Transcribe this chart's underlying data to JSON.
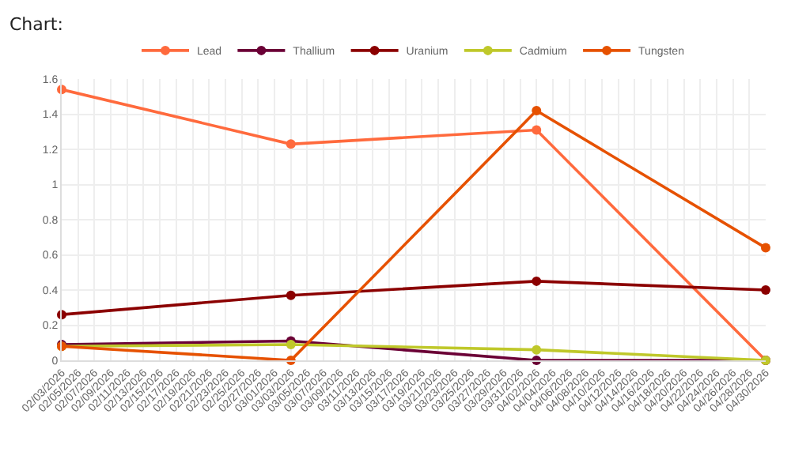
{
  "chart_data": {
    "type": "line",
    "title": "Chart:",
    "x": [
      "2026-02-03",
      "2026-03-03",
      "2026-04-02",
      "2026-04-30"
    ],
    "series": [
      {
        "name": "Lead",
        "color": "#ff6a3d",
        "values": [
          1.54,
          1.23,
          1.31,
          0
        ]
      },
      {
        "name": "Thallium",
        "color": "#6b0036",
        "values": [
          0.09,
          0.11,
          0,
          0
        ]
      },
      {
        "name": "Uranium",
        "color": "#8b0000",
        "values": [
          0.26,
          0.37,
          0.45,
          0.4
        ]
      },
      {
        "name": "Cadmium",
        "color": "#bfc82a",
        "values": [
          0.08,
          0.09,
          0.06,
          0
        ]
      },
      {
        "name": "Tungsten",
        "color": "#e65100",
        "values": [
          0.08,
          0,
          1.42,
          0.64
        ]
      }
    ],
    "xlim": [
      "2026-02-03",
      "2026-04-30"
    ],
    "xticks": [
      {
        "value": "2026-02-03",
        "label": "02/03/2026"
      },
      {
        "value": "2026-02-05",
        "label": "02/05/2026"
      },
      {
        "value": "2026-02-07",
        "label": "02/07/2026"
      },
      {
        "value": "2026-02-09",
        "label": "02/09/2026"
      },
      {
        "value": "2026-02-11",
        "label": "02/11/2026"
      },
      {
        "value": "2026-02-13",
        "label": "02/13/2026"
      },
      {
        "value": "2026-02-15",
        "label": "02/15/2026"
      },
      {
        "value": "2026-02-17",
        "label": "02/17/2026"
      },
      {
        "value": "2026-02-19",
        "label": "02/19/2026"
      },
      {
        "value": "2026-02-21",
        "label": "02/21/2026"
      },
      {
        "value": "2026-02-23",
        "label": "02/23/2026"
      },
      {
        "value": "2026-02-25",
        "label": "02/25/2026"
      },
      {
        "value": "2026-02-27",
        "label": "02/27/2026"
      },
      {
        "value": "2026-03-01",
        "label": "03/01/2026"
      },
      {
        "value": "2026-03-03",
        "label": "03/03/2026"
      },
      {
        "value": "2026-03-05",
        "label": "03/05/2026"
      },
      {
        "value": "2026-03-07",
        "label": "03/07/2026"
      },
      {
        "value": "2026-03-09",
        "label": "03/09/2026"
      },
      {
        "value": "2026-03-11",
        "label": "03/11/2026"
      },
      {
        "value": "2026-03-13",
        "label": "03/13/2026"
      },
      {
        "value": "2026-03-15",
        "label": "03/15/2026"
      },
      {
        "value": "2026-03-17",
        "label": "03/17/2026"
      },
      {
        "value": "2026-03-19",
        "label": "03/19/2026"
      },
      {
        "value": "2026-03-21",
        "label": "03/21/2026"
      },
      {
        "value": "2026-03-23",
        "label": "03/23/2026"
      },
      {
        "value": "2026-03-25",
        "label": "03/25/2026"
      },
      {
        "value": "2026-03-27",
        "label": "03/27/2026"
      },
      {
        "value": "2026-03-29",
        "label": "03/29/2026"
      },
      {
        "value": "2026-03-31",
        "label": "03/31/2026"
      },
      {
        "value": "2026-04-02",
        "label": "04/02/2026"
      },
      {
        "value": "2026-04-04",
        "label": "04/04/2026"
      },
      {
        "value": "2026-04-06",
        "label": "04/06/2026"
      },
      {
        "value": "2026-04-08",
        "label": "04/08/2026"
      },
      {
        "value": "2026-04-10",
        "label": "04/10/2026"
      },
      {
        "value": "2026-04-12",
        "label": "04/12/2026"
      },
      {
        "value": "2026-04-14",
        "label": "04/14/2026"
      },
      {
        "value": "2026-04-16",
        "label": "04/16/2026"
      },
      {
        "value": "2026-04-18",
        "label": "04/18/2026"
      },
      {
        "value": "2026-04-20",
        "label": "04/20/2026"
      },
      {
        "value": "2026-04-22",
        "label": "04/22/2026"
      },
      {
        "value": "2026-04-24",
        "label": "04/24/2026"
      },
      {
        "value": "2026-04-26",
        "label": "04/26/2026"
      },
      {
        "value": "2026-04-28",
        "label": "04/28/2026"
      },
      {
        "value": "2026-04-30",
        "label": "04/30/2026"
      }
    ],
    "ylim": [
      0,
      1.6
    ],
    "yticks": [
      0,
      0.2,
      0.4,
      0.6,
      0.8,
      1,
      1.2,
      1.4,
      1.6
    ],
    "grid": true,
    "legend": "top",
    "marker": "circle",
    "line_style": "solid"
  }
}
